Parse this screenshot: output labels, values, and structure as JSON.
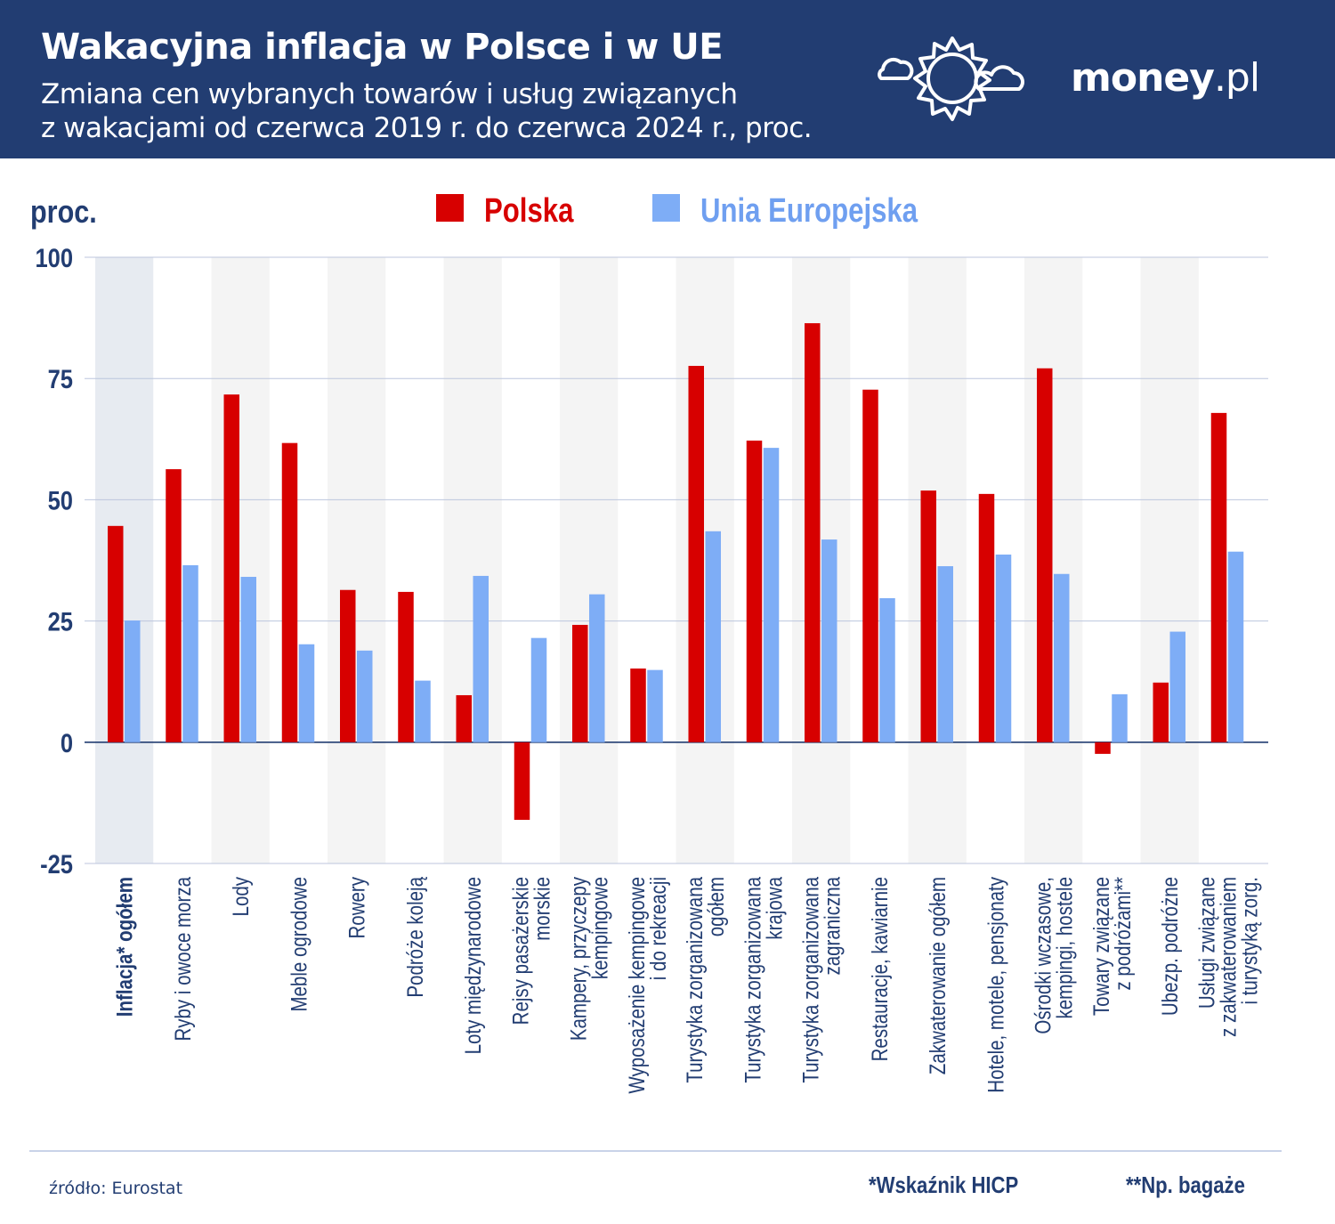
{
  "header": {
    "title": "Wakacyjna inflacja w Polsce i w UE",
    "subtitle_line1": "Zmiana cen wybranych towarów i usług związanych",
    "subtitle_line2_a": "z wakacjami ",
    "subtitle_line2_b": "od czerwca 2019 r. do czerwca 2024 r., proc.",
    "logo_main": "money",
    "logo_suffix": ".pl",
    "icon": "sun-cloud-icon"
  },
  "chart_data": {
    "type": "bar",
    "ylabel": "proc.",
    "ylim": [
      -25,
      100
    ],
    "yticks": [
      "100",
      "75",
      "50",
      "25",
      "0",
      "-25"
    ],
    "grid": true,
    "legend_placement": "top-center",
    "categories": [
      [
        "Inflacja* ogółem"
      ],
      [
        "Ryby i owoce morza"
      ],
      [
        "Lody"
      ],
      [
        "Meble ogrodowe"
      ],
      [
        "Rowery"
      ],
      [
        "Podróże koleją"
      ],
      [
        "Loty międzynarodowe"
      ],
      [
        "Rejsy pasażerskie",
        "morskie"
      ],
      [
        "Kampery, przyczepy",
        "kempingowe"
      ],
      [
        "Wyposażenie kempingowe",
        "i do rekreacji"
      ],
      [
        "Turystyka zorganizowana",
        "ogółem"
      ],
      [
        "Turystyka zorganizowana",
        "krajowa"
      ],
      [
        "Turystyka zorganizowana",
        "zagraniczna"
      ],
      [
        "Restauracje, kawiarnie"
      ],
      [
        "Zakwaterowanie ogółem"
      ],
      [
        "Hotele, motele, pensjonaty"
      ],
      [
        "Ośrodki wczasowe,",
        "kempingi, hostele"
      ],
      [
        "Towary związane",
        "z podróżami**"
      ],
      [
        "Ubezp. podróżne"
      ],
      [
        "Usługi związane",
        "z zakwaterowaniem",
        "i turystyką zorg."
      ]
    ],
    "series": [
      {
        "name": "Polska",
        "color": "#d70000",
        "values": [
          44.6,
          56.3,
          71.7,
          61.7,
          31.4,
          31.0,
          9.7,
          -16.0,
          24.2,
          15.2,
          77.6,
          62.2,
          86.4,
          72.7,
          51.9,
          51.2,
          77.1,
          -2.4,
          12.3,
          67.9
        ]
      },
      {
        "name": "Unia Europejska",
        "color": "#7eadf6",
        "values": [
          25.1,
          36.5,
          34.1,
          20.2,
          18.9,
          12.7,
          34.3,
          21.5,
          30.5,
          14.9,
          43.5,
          60.7,
          41.8,
          29.7,
          36.3,
          38.7,
          34.7,
          9.9,
          22.8,
          39.3
        ]
      }
    ]
  },
  "footer": {
    "source": "źródło: Eurostat",
    "note1": "*Wskaźnik HICP",
    "note2": "**Np. bagaże"
  }
}
